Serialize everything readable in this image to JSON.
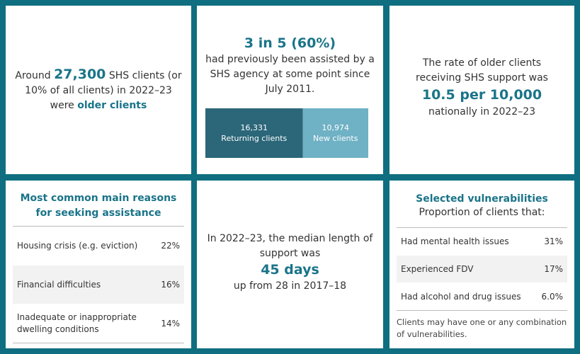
{
  "older_clients": {
    "prefix": "Around",
    "number": "27,300",
    "middle": "SHS clients (or 10% of all clients) in 2022–23 were",
    "emphasis": "older clients"
  },
  "returning": {
    "headline": "3 in 5 (60%)",
    "text": "had previously been assisted by a SHS agency at some point since July 2011.",
    "series": [
      {
        "name": "Returning clients",
        "value": 16331,
        "value_label": "16,331",
        "color": "#2b6679"
      },
      {
        "name": "New clients",
        "value": 10974,
        "value_label": "10,974",
        "color": "#6fb1c5"
      }
    ]
  },
  "rate": {
    "before": "The rate of older clients receiving SHS support was",
    "number": "10.5 per 10,000",
    "after": "nationally in 2022–23"
  },
  "reasons": {
    "title": "Most common main reasons for seeking assistance",
    "rows": [
      [
        "Housing crisis (e.g. eviction)",
        "22%"
      ],
      [
        "Financial difficulties",
        "16%"
      ],
      [
        "Inadequate or inappropriate dwelling conditions",
        "14%"
      ]
    ]
  },
  "support": {
    "before": "In 2022–23, the median length of support was",
    "number": "45 days",
    "after": "up from 28 in 2017–18"
  },
  "vulnerabilities": {
    "title": "Selected vulnerabilities",
    "subtitle": "Proportion of clients that:",
    "rows": [
      [
        "Had mental health issues",
        "31%"
      ],
      [
        "Experienced FDV",
        "17%"
      ],
      [
        "Had alcohol and drug issues",
        "6.0%"
      ]
    ],
    "note": "Clients may have one or any combination of vulnerabilities."
  }
}
